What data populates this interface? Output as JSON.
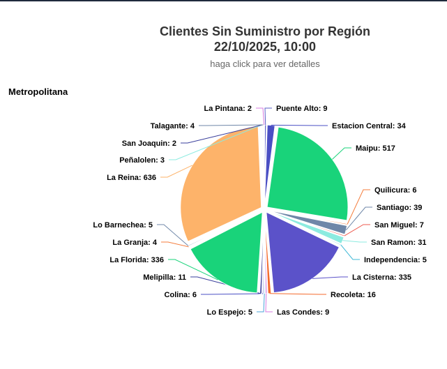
{
  "header": {
    "title_line1": "Clientes Sin Suministro por Región",
    "title_line2": "22/10/2025, 10:00",
    "subtitle": "haga click para ver detalles",
    "region": "Metropolitana"
  },
  "chart_data": {
    "type": "pie",
    "title": "Clientes Sin Suministro por Región 22/10/2025, 10:00",
    "subtitle": "haga click para ver detalles",
    "region": "Metropolitana",
    "slices": [
      {
        "label": "Puente Alto",
        "value": 9,
        "color": "#5b5fc7"
      },
      {
        "label": "Estacion Central",
        "value": 34,
        "color": "#4a4fc4"
      },
      {
        "label": "Maipu",
        "value": 517,
        "color": "#19d37a"
      },
      {
        "label": "Quilicura",
        "value": 6,
        "color": "#f47c3c"
      },
      {
        "label": "Santiago",
        "value": 39,
        "color": "#6f87a8"
      },
      {
        "label": "San Miguel",
        "value": 7,
        "color": "#ee5a4f"
      },
      {
        "label": "San Ramon",
        "value": 31,
        "color": "#8cebe0"
      },
      {
        "label": "Independencia",
        "value": 5,
        "color": "#3fb8d6"
      },
      {
        "label": "La Cisterna",
        "value": 335,
        "color": "#5b52c9"
      },
      {
        "label": "Recoleta",
        "value": 16,
        "color": "#f46a2c"
      },
      {
        "label": "Las Condes",
        "value": 9,
        "color": "#d77be0"
      },
      {
        "label": "Lo Espejo",
        "value": 5,
        "color": "#4aa3d9"
      },
      {
        "label": "Colina",
        "value": 6,
        "color": "#4a4fc4"
      },
      {
        "label": "Melipilla",
        "value": 11,
        "color": "#3a3f9c"
      },
      {
        "label": "La Florida",
        "value": 336,
        "color": "#19d37a"
      },
      {
        "label": "La Granja",
        "value": 4,
        "color": "#f47c3c"
      },
      {
        "label": "Lo Barnechea",
        "value": 5,
        "color": "#6f87a8"
      },
      {
        "label": "La Reina",
        "value": 636,
        "color": "#fdb36a"
      },
      {
        "label": "Peñalolen",
        "value": 3,
        "color": "#8cebe0"
      },
      {
        "label": "San Joaquin",
        "value": 2,
        "color": "#3a3f9c"
      },
      {
        "label": "Talagante",
        "value": 4,
        "color": "#6f87a8"
      },
      {
        "label": "La Pintana",
        "value": 2,
        "color": "#d77be0"
      }
    ]
  }
}
